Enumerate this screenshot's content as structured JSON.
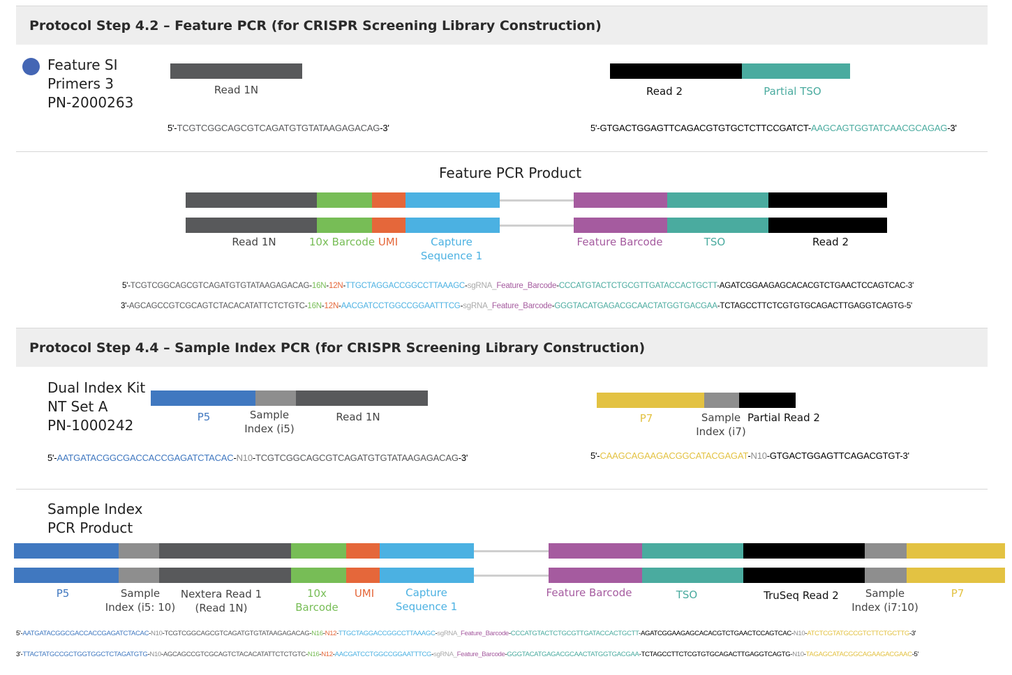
{
  "colors": {
    "read1": "#58595b",
    "read2": "#000000",
    "tso": "#4aab9f",
    "barcode10x": "#77bd56",
    "umi": "#e5673a",
    "capture": "#4bb1e2",
    "feature": "#a55b9f",
    "p5": "#4078c0",
    "sample_index": "#8e8e8e",
    "p7": "#e3c242",
    "connector": "#cfcfcf",
    "grey_text": "#aaaaaa"
  },
  "step42": {
    "title": "Protocol Step 4.2  – Feature PCR (for CRISPR Screening Library Construction)",
    "primer_name": "Feature SI\nPrimers 3\nPN-2000263",
    "left_primer": {
      "label": "Read 1N",
      "seq": [
        {
          "t": "5'-",
          "c": "#000000"
        },
        {
          "t": "TCGTCGGCAGCGTCAGATGTGTATAAGAGACAG",
          "c": "#58595b"
        },
        {
          "t": "-3'",
          "c": "#000000"
        }
      ]
    },
    "right_primer": {
      "label_read2": "Read 2",
      "label_tso": "Partial TSO",
      "seq": [
        {
          "t": "5'-",
          "c": "#000000"
        },
        {
          "t": "GTGACTGGAGTTCAGACGTGTGCTCTTCCGATCT",
          "c": "#000000"
        },
        {
          "t": "-",
          "c": "#000000"
        },
        {
          "t": "AAGCAGTGGTATCAACGCAGAG",
          "c": "#4aab9f"
        },
        {
          "t": "-3'",
          "c": "#000000"
        }
      ]
    },
    "product": {
      "title": "Feature PCR Product",
      "labels": {
        "read1n": "Read 1N",
        "barcode": "10x Barcode",
        "umi": "UMI",
        "capture": "Capture\nSequence 1",
        "feature": "Feature Barcode",
        "tso": "TSO",
        "read2": "Read 2"
      },
      "seq_top": [
        {
          "t": "5'-",
          "c": "#000000"
        },
        {
          "t": "TCGTCGGCAGCGTCAGATGTGTATAAGAGACAG",
          "c": "#58595b"
        },
        {
          "t": "-",
          "c": "#000000"
        },
        {
          "t": "16N",
          "c": "#77bd56"
        },
        {
          "t": "-",
          "c": "#000000"
        },
        {
          "t": "12N",
          "c": "#e5673a"
        },
        {
          "t": "-",
          "c": "#000000"
        },
        {
          "t": "TTGCTAGGACCGGCCTTAAAGC",
          "c": "#4bb1e2"
        },
        {
          "t": "-",
          "c": "#000000"
        },
        {
          "t": "sgRNA_",
          "c": "#aaaaaa"
        },
        {
          "t": "Feature_Barcode",
          "c": "#a55b9f"
        },
        {
          "t": "-",
          "c": "#000000"
        },
        {
          "t": "CCCATGTACTCTGCGTTGATACCACTGCTT",
          "c": "#4aab9f"
        },
        {
          "t": "-AGATCGGAAGAGCACACGTCTGAACTCCAGTCAC-3'",
          "c": "#000000"
        }
      ],
      "seq_bottom": [
        {
          "t": "3'-",
          "c": "#000000"
        },
        {
          "t": "AGCAGCCGTCGCAGTCTACACATATTCTCTGTC",
          "c": "#58595b"
        },
        {
          "t": "-",
          "c": "#000000"
        },
        {
          "t": "16N",
          "c": "#77bd56"
        },
        {
          "t": "-",
          "c": "#000000"
        },
        {
          "t": "12N",
          "c": "#e5673a"
        },
        {
          "t": "-",
          "c": "#000000"
        },
        {
          "t": "AACGATCCTGGCCGGAATTTCG",
          "c": "#4bb1e2"
        },
        {
          "t": "-",
          "c": "#000000"
        },
        {
          "t": "sgRNA_",
          "c": "#aaaaaa"
        },
        {
          "t": "Feature_Barcode",
          "c": "#a55b9f"
        },
        {
          "t": "-",
          "c": "#000000"
        },
        {
          "t": "GGGTACATGAGACGCAACTATGGTGACGAA",
          "c": "#4aab9f"
        },
        {
          "t": "-TCTAGCCTTCTCGTGTGCAGACTTGAGGTCAGTG-5'",
          "c": "#000000"
        }
      ]
    }
  },
  "step44": {
    "title": "Protocol Step 4.4  –  Sample Index PCR (for CRISPR Screening Library Construction)",
    "kit_name": "Dual Index Kit\nNT Set A\nPN-1000242",
    "left_primer": {
      "label_p5": "P5",
      "label_i5": "Sample\nIndex (i5)",
      "label_read1n": "Read 1N",
      "seq": [
        {
          "t": "5'-",
          "c": "#000000"
        },
        {
          "t": "AATGATACGGCGACCACCGAGATCTACAC",
          "c": "#4078c0"
        },
        {
          "t": "-",
          "c": "#000000"
        },
        {
          "t": "N10",
          "c": "#8e8e8e"
        },
        {
          "t": "-",
          "c": "#000000"
        },
        {
          "t": "TCGTCGGCAGCGTCAGATGTGTATAAGAGACAG",
          "c": "#58595b"
        },
        {
          "t": "-3'",
          "c": "#000000"
        }
      ]
    },
    "right_primer": {
      "label_p7": "P7",
      "label_i7": "Sample\nIndex (i7)",
      "label_partial": "Partial Read 2",
      "seq": [
        {
          "t": "5'-",
          "c": "#000000"
        },
        {
          "t": "CAAGCAGAAGACGGCATACGAGAT",
          "c": "#e3c242"
        },
        {
          "t": "-",
          "c": "#000000"
        },
        {
          "t": "N10",
          "c": "#8e8e8e"
        },
        {
          "t": "-",
          "c": "#000000"
        },
        {
          "t": "GTGACTGGAGTTCAGACGTGT",
          "c": "#000000"
        },
        {
          "t": "-3'",
          "c": "#000000"
        }
      ]
    },
    "product": {
      "title": "Sample Index\nPCR Product",
      "labels": {
        "p5": "P5",
        "i5": "Sample\nIndex (i5: 10)",
        "nextera": "Nextera Read 1\n(Read 1N)",
        "barcode": "10x\nBarcode",
        "umi": "UMI",
        "capture": "Capture\nSequence 1",
        "feature": "Feature Barcode",
        "tso": "TSO",
        "truseq": "TruSeq Read 2",
        "i7": "Sample\nIndex (i7:10)",
        "p7": "P7"
      },
      "seq_top": [
        {
          "t": "5'-",
          "c": "#000000"
        },
        {
          "t": "AATGATACGGCGACCACCGAGATCTACAC",
          "c": "#4078c0"
        },
        {
          "t": "-",
          "c": "#000000"
        },
        {
          "t": "N10",
          "c": "#8e8e8e"
        },
        {
          "t": "-",
          "c": "#000000"
        },
        {
          "t": "TCGTCGGCAGCGTCAGATGTGTATAAGAGACAG",
          "c": "#58595b"
        },
        {
          "t": "-",
          "c": "#000000"
        },
        {
          "t": "N16",
          "c": "#77bd56"
        },
        {
          "t": "-",
          "c": "#000000"
        },
        {
          "t": "N12",
          "c": "#e5673a"
        },
        {
          "t": "-",
          "c": "#000000"
        },
        {
          "t": "TTGCTAGGACCGGCCTTAAAGC",
          "c": "#4bb1e2"
        },
        {
          "t": "-",
          "c": "#000000"
        },
        {
          "t": "sgRNA_",
          "c": "#aaaaaa"
        },
        {
          "t": "Feature_Barcode",
          "c": "#a55b9f"
        },
        {
          "t": "-",
          "c": "#000000"
        },
        {
          "t": "CCCATGTACTCTGCGTTGATACCACTGCTT",
          "c": "#4aab9f"
        },
        {
          "t": "-AGATCGGAAGAGCACACGTCTGAACTCCAGTCAC-",
          "c": "#000000"
        },
        {
          "t": "N10",
          "c": "#8e8e8e"
        },
        {
          "t": "-",
          "c": "#000000"
        },
        {
          "t": "ATCTCGTATGCCGTCTTCTGCTTG",
          "c": "#e3c242"
        },
        {
          "t": "-3'",
          "c": "#000000"
        }
      ],
      "seq_bottom": [
        {
          "t": "3'-",
          "c": "#000000"
        },
        {
          "t": "TTACTATGCCGCTGGTGGCTCTAGATGTG",
          "c": "#4078c0"
        },
        {
          "t": "-",
          "c": "#000000"
        },
        {
          "t": "N10",
          "c": "#8e8e8e"
        },
        {
          "t": "-",
          "c": "#000000"
        },
        {
          "t": "AGCAGCCGTCGCAGTCTACACATATTCTCTGTC",
          "c": "#58595b"
        },
        {
          "t": "-",
          "c": "#000000"
        },
        {
          "t": "N16",
          "c": "#77bd56"
        },
        {
          "t": "-",
          "c": "#000000"
        },
        {
          "t": "N12",
          "c": "#e5673a"
        },
        {
          "t": "-",
          "c": "#000000"
        },
        {
          "t": "AACGATCCTGGCCGGAATTTCG",
          "c": "#4bb1e2"
        },
        {
          "t": "-",
          "c": "#000000"
        },
        {
          "t": "sgRNA_",
          "c": "#aaaaaa"
        },
        {
          "t": "Feature_Barcode",
          "c": "#a55b9f"
        },
        {
          "t": "-",
          "c": "#000000"
        },
        {
          "t": "GGGTACATGAGACGCAACTATGGTGACGAA",
          "c": "#4aab9f"
        },
        {
          "t": "-TCTAGCCTTCTCGTGTGCAGACTTGAGGTCAGTG-",
          "c": "#000000"
        },
        {
          "t": "N10",
          "c": "#8e8e8e"
        },
        {
          "t": "-",
          "c": "#000000"
        },
        {
          "t": "TAGAGCATACGGCAGAAGACGAAC",
          "c": "#e3c242"
        },
        {
          "t": "-5'",
          "c": "#000000"
        }
      ]
    }
  }
}
